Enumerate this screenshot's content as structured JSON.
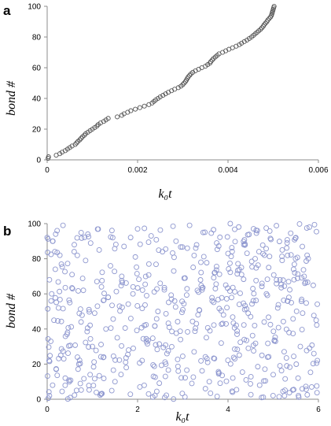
{
  "chart_data": [
    {
      "panel": "a",
      "type": "scatter",
      "xlabel": "k₀t",
      "ylabel": "bond #",
      "xlim": [
        0,
        0.006
      ],
      "ylim": [
        0,
        100
      ],
      "xticks": [
        0,
        0.002,
        0.004,
        0.006
      ],
      "xtick_labels": [
        "0",
        "0.002",
        "0.004",
        "0.006"
      ],
      "yticks": [
        0,
        20,
        40,
        60,
        80,
        100
      ],
      "ytick_labels": [
        "0",
        "20",
        "40",
        "60",
        "80",
        "100"
      ],
      "marker_color": "#555555",
      "grid": false,
      "note_points": "digitized approximately, ordered by bond number 1-100",
      "x": [
        2e-05,
        3e-05,
        0.0002,
        0.00028,
        0.00033,
        0.0004,
        0.00045,
        0.0005,
        0.00055,
        0.00062,
        0.00065,
        0.00068,
        0.00072,
        0.00075,
        0.00078,
        0.00082,
        0.00085,
        0.0009,
        0.00095,
        0.001,
        0.00105,
        0.0011,
        0.00113,
        0.00118,
        0.00125,
        0.0013,
        0.00135,
        0.00155,
        0.00165,
        0.0017,
        0.00178,
        0.00185,
        0.00195,
        0.00205,
        0.00215,
        0.00225,
        0.00232,
        0.00236,
        0.0024,
        0.00245,
        0.0025,
        0.00256,
        0.00262,
        0.00268,
        0.00275,
        0.00282,
        0.0029,
        0.00296,
        0.003,
        0.00303,
        0.00306,
        0.00308,
        0.0031,
        0.00312,
        0.00315,
        0.00318,
        0.00322,
        0.00328,
        0.00335,
        0.00342,
        0.0035,
        0.00355,
        0.0036,
        0.00362,
        0.00365,
        0.00368,
        0.00372,
        0.00376,
        0.0038,
        0.00388,
        0.00395,
        0.00402,
        0.0041,
        0.00418,
        0.00425,
        0.0043,
        0.00436,
        0.00442,
        0.00447,
        0.00452,
        0.00456,
        0.0046,
        0.00464,
        0.00468,
        0.00472,
        0.00475,
        0.00478,
        0.0048,
        0.00483,
        0.00486,
        0.00488,
        0.00491,
        0.00494,
        0.00496,
        0.00497,
        0.00498,
        0.00499,
        0.005,
        0.00501,
        0.00502
      ],
      "y": [
        1,
        2,
        3,
        4,
        5,
        6,
        7,
        8,
        9,
        10,
        11,
        12,
        13,
        14,
        15,
        16,
        17,
        18,
        19,
        20,
        21,
        22,
        23,
        24,
        25,
        26,
        27,
        28,
        29,
        30,
        31,
        32,
        33,
        34,
        35,
        36,
        37,
        38,
        39,
        40,
        41,
        42,
        43,
        44,
        45,
        46,
        47,
        48,
        49,
        50,
        51,
        52,
        53,
        54,
        55,
        56,
        57,
        58,
        59,
        60,
        61,
        62,
        63,
        64,
        65,
        66,
        67,
        68,
        69,
        70,
        71,
        72,
        73,
        74,
        75,
        76,
        77,
        78,
        79,
        80,
        81,
        82,
        83,
        84,
        85,
        86,
        87,
        88,
        89,
        90,
        91,
        92,
        93,
        94,
        95,
        96,
        97,
        98,
        99,
        100
      ]
    },
    {
      "panel": "b",
      "type": "scatter",
      "xlabel": "k₀t",
      "ylabel": "bond #",
      "xlim": [
        0,
        6
      ],
      "ylim": [
        0,
        100
      ],
      "xticks": [
        0,
        2,
        4,
        6
      ],
      "xtick_labels": [
        "0",
        "2",
        "4",
        "6"
      ],
      "yticks": [
        0,
        20,
        40,
        60,
        80,
        100
      ],
      "ytick_labels": [
        "0",
        "20",
        "40",
        "60",
        "80",
        "100"
      ],
      "marker_color": "#8e97cf",
      "grid": false,
      "note_points": "uniformly scattered open circles, approximately 600 points, values approximate",
      "points": [
        [
          0.05,
          2
        ],
        [
          0.12,
          8
        ],
        [
          0.2,
          17
        ],
        [
          0.3,
          25
        ],
        [
          0.08,
          33
        ],
        [
          0.15,
          45
        ],
        [
          0.25,
          52
        ],
        [
          0.1,
          60
        ],
        [
          0.05,
          68
        ],
        [
          0.18,
          74
        ],
        [
          0.28,
          82
        ],
        [
          0.12,
          90
        ],
        [
          0.22,
          96
        ],
        [
          0.35,
          99
        ],
        [
          0.4,
          12
        ],
        [
          0.45,
          38
        ],
        [
          0.5,
          55
        ],
        [
          0.55,
          71
        ],
        [
          0.6,
          88
        ],
        [
          0.65,
          5
        ],
        [
          0.7,
          20
        ],
        [
          0.75,
          44
        ],
        [
          0.8,
          62
        ],
        [
          0.85,
          79
        ],
        [
          0.9,
          94
        ],
        [
          0.95,
          14
        ],
        [
          1.0,
          30
        ],
        [
          1.05,
          49
        ],
        [
          1.1,
          67
        ],
        [
          1.15,
          85
        ],
        [
          1.2,
          3
        ],
        [
          1.25,
          24
        ],
        [
          1.3,
          40
        ],
        [
          1.35,
          58
        ],
        [
          1.4,
          76
        ],
        [
          1.45,
          92
        ],
        [
          1.5,
          10
        ],
        [
          1.55,
          35
        ],
        [
          1.6,
          53
        ],
        [
          1.65,
          70
        ],
        [
          1.7,
          87
        ],
        [
          1.75,
          18
        ],
        [
          1.8,
          28
        ],
        [
          1.85,
          46
        ],
        [
          1.9,
          64
        ],
        [
          1.95,
          81
        ],
        [
          2.0,
          97
        ],
        [
          2.05,
          7
        ],
        [
          2.1,
          22
        ],
        [
          2.15,
          42
        ],
        [
          2.2,
          59
        ],
        [
          2.25,
          77
        ],
        [
          2.3,
          93
        ],
        [
          2.35,
          13
        ],
        [
          2.4,
          31
        ],
        [
          2.45,
          50
        ],
        [
          2.5,
          66
        ],
        [
          2.55,
          84
        ],
        [
          2.6,
          1
        ],
        [
          2.65,
          26
        ],
        [
          2.7,
          41
        ],
        [
          2.75,
          57
        ],
        [
          2.8,
          73
        ],
        [
          2.85,
          90
        ],
        [
          2.9,
          16
        ],
        [
          2.95,
          34
        ],
        [
          3.0,
          51
        ],
        [
          3.05,
          69
        ],
        [
          3.1,
          86
        ],
        [
          3.15,
          99
        ],
        [
          3.2,
          9
        ],
        [
          3.25,
          27
        ],
        [
          3.3,
          43
        ],
        [
          3.35,
          61
        ],
        [
          3.4,
          78
        ],
        [
          3.45,
          95
        ],
        [
          3.5,
          6
        ],
        [
          3.55,
          21
        ],
        [
          3.6,
          39
        ],
        [
          3.65,
          56
        ],
        [
          3.7,
          72
        ],
        [
          3.75,
          89
        ],
        [
          3.8,
          15
        ],
        [
          3.85,
          32
        ],
        [
          3.9,
          48
        ],
        [
          3.95,
          65
        ],
        [
          4.0,
          83
        ],
        [
          4.05,
          100
        ],
        [
          4.1,
          4
        ],
        [
          4.15,
          23
        ],
        [
          4.2,
          37
        ],
        [
          4.25,
          54
        ],
        [
          4.3,
          71
        ],
        [
          4.35,
          88
        ],
        [
          4.4,
          11
        ],
        [
          4.45,
          29
        ],
        [
          4.5,
          47
        ],
        [
          4.55,
          63
        ],
        [
          4.6,
          80
        ],
        [
          4.65,
          96
        ],
        [
          4.7,
          8
        ],
        [
          4.75,
          25
        ],
        [
          4.8,
          44
        ],
        [
          4.85,
          60
        ],
        [
          4.9,
          75
        ],
        [
          4.95,
          91
        ],
        [
          5.0,
          14
        ],
        [
          5.05,
          33
        ],
        [
          5.1,
          52
        ],
        [
          5.15,
          68
        ],
        [
          5.2,
          85
        ],
        [
          5.25,
          2
        ],
        [
          5.3,
          19
        ],
        [
          5.35,
          38
        ],
        [
          5.4,
          55
        ],
        [
          5.45,
          74
        ],
        [
          5.5,
          92
        ],
        [
          5.55,
          12
        ],
        [
          5.6,
          30
        ],
        [
          5.65,
          49
        ],
        [
          5.7,
          66
        ],
        [
          5.75,
          82
        ],
        [
          5.8,
          98
        ],
        [
          5.85,
          7
        ],
        [
          5.9,
          26
        ],
        [
          5.95,
          45
        ]
      ],
      "generated_point_count": 480
    }
  ]
}
